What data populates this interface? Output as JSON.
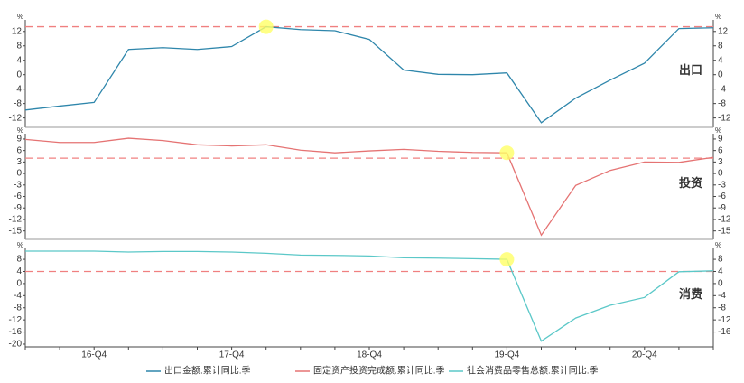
{
  "chart_data": {
    "type": "line",
    "categories": [
      null,
      null,
      "16-Q4",
      null,
      null,
      null,
      "17-Q4",
      null,
      null,
      null,
      "18-Q4",
      null,
      null,
      null,
      "19-Q4",
      null,
      null,
      null,
      "20-Q4",
      null,
      null
    ],
    "panels": [
      {
        "title": "出口",
        "y_unit": "%",
        "ylim": [
          -14.6,
          15.2
        ],
        "yticks": [
          -12,
          -8,
          -4,
          0,
          4,
          8,
          12
        ],
        "y2lim": [
          -14.6,
          15.2
        ],
        "y2ticks": [
          -12,
          -8,
          -4,
          0,
          4,
          8,
          12
        ],
        "reference_line": 13.3,
        "highlight": 7,
        "series": [
          {
            "name": "出口金额:累计同比:季",
            "color": "#2e86ab",
            "values": [
              -9.8,
              -8.7,
              -7.7,
              7.0,
              7.5,
              7.0,
              7.8,
              13.3,
              12.5,
              12.2,
              9.8,
              1.3,
              0.1,
              0.0,
              0.5,
              -13.3,
              -6.5,
              -1.5,
              3.2,
              12.8,
              13.0
            ]
          }
        ]
      },
      {
        "title": "投资",
        "y_unit": "%",
        "ylim": [
          -17.2,
          10.4
        ],
        "yticks": [
          -15,
          -12,
          -9,
          -6,
          -3,
          0,
          3,
          6,
          9
        ],
        "y2lim": [
          -17.2,
          10.4
        ],
        "y2ticks": [
          -15,
          -12,
          -9,
          -6,
          -3,
          0,
          3,
          6,
          9
        ],
        "reference_line": 4,
        "highlight": 14,
        "series": [
          {
            "name": "固定资产投资完成额:累计同比:季",
            "color": "#e57373",
            "values": [
              8.9,
              8.1,
              8.1,
              9.2,
              8.6,
              7.5,
              7.2,
              7.5,
              6.1,
              5.4,
              5.9,
              6.3,
              5.8,
              5.5,
              5.4,
              -16.1,
              -3.1,
              0.8,
              3.0,
              2.9,
              4.2
            ]
          }
        ]
      },
      {
        "title": "消费",
        "y_unit": "%",
        "ylim": [
          -20.9,
          11.6
        ],
        "yticks": [
          -20,
          -16,
          -12,
          -8,
          -4,
          0,
          4,
          8
        ],
        "y2lim": [
          -20.9,
          11.6
        ],
        "y2ticks": [
          -16,
          -12,
          -8,
          -4,
          0,
          4,
          8
        ],
        "reference_line": 4,
        "highlight": 14,
        "series": [
          {
            "name": "社会消费品零售总额:累计同比:季",
            "color": "#5bc8c8",
            "values": [
              10.7,
              10.7,
              10.7,
              10.4,
              10.6,
              10.6,
              10.4,
              10.0,
              9.4,
              9.3,
              9.1,
              8.5,
              8.4,
              8.2,
              8.0,
              -19.0,
              -11.4,
              -7.2,
              -4.6,
              3.9,
              4.2
            ]
          }
        ]
      }
    ]
  }
}
